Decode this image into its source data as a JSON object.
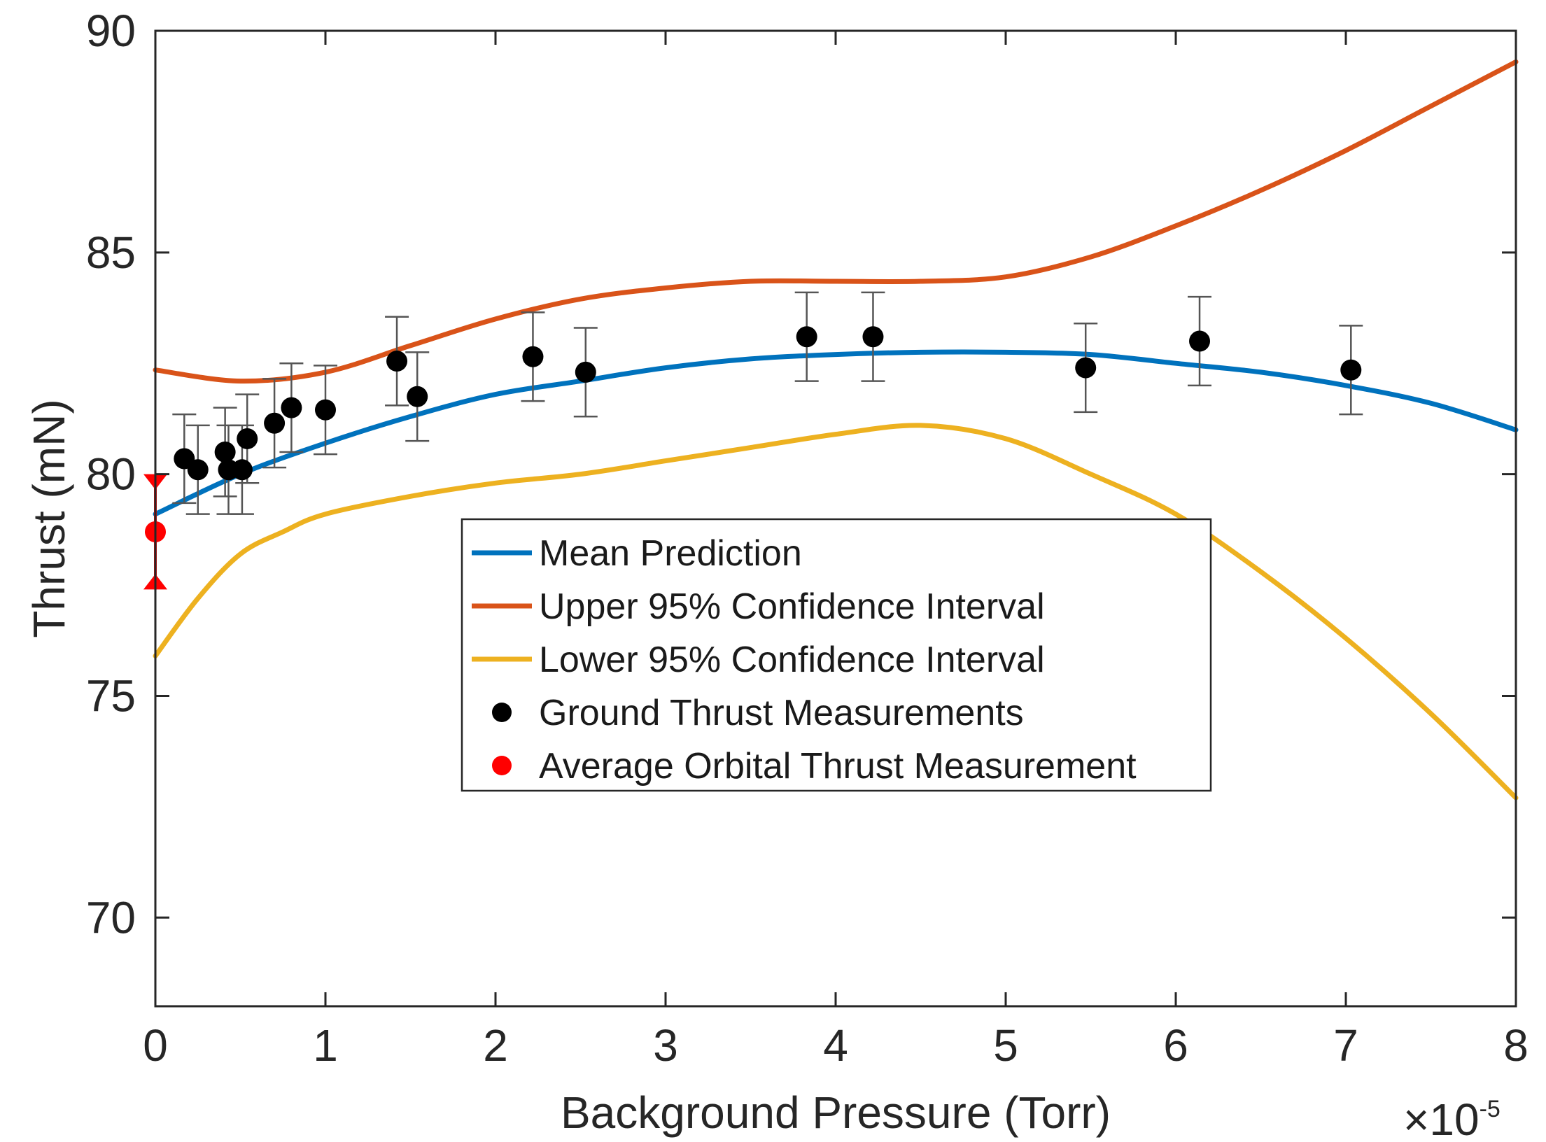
{
  "chart_data": {
    "type": "line",
    "title": "",
    "xlabel": "Background Pressure (Torr)",
    "ylabel": "Thrust (mN)",
    "x_exponent_label": "×10",
    "x_exponent_power": "-5",
    "xlim": [
      0,
      8
    ],
    "ylim": [
      68,
      90
    ],
    "xticks": [
      0,
      1,
      2,
      3,
      4,
      5,
      6,
      7,
      8
    ],
    "xtick_labels": [
      "0",
      "1",
      "2",
      "3",
      "4",
      "5",
      "6",
      "7",
      "8"
    ],
    "yticks": [
      70,
      75,
      80,
      85,
      90
    ],
    "ytick_labels": [
      "70",
      "75",
      "80",
      "85",
      "90"
    ],
    "grid": false,
    "legend_position": "center",
    "series": [
      {
        "name": "Mean Prediction",
        "kind": "line",
        "color": "#0072BD",
        "x": [
          0,
          0.5,
          1,
          1.5,
          2,
          2.5,
          3,
          3.5,
          4,
          4.5,
          5,
          5.5,
          6,
          6.5,
          7,
          7.5,
          8
        ],
        "y": [
          79.1,
          80.0,
          80.7,
          81.3,
          81.8,
          82.1,
          82.4,
          82.6,
          82.7,
          82.75,
          82.75,
          82.7,
          82.5,
          82.3,
          82.0,
          81.6,
          81.0
        ]
      },
      {
        "name": "Upper 95% Confidence Interval",
        "kind": "line",
        "color": "#D95319",
        "x": [
          0,
          0.5,
          1,
          1.5,
          2,
          2.5,
          3,
          3.5,
          4,
          4.5,
          5,
          5.5,
          6,
          6.5,
          7,
          7.5,
          8
        ],
        "y": [
          82.35,
          82.1,
          82.3,
          82.9,
          83.5,
          83.95,
          84.2,
          84.35,
          84.35,
          84.35,
          84.45,
          84.9,
          85.6,
          86.4,
          87.3,
          88.3,
          89.3
        ]
      },
      {
        "name": "Lower 95% Confidence Interval",
        "kind": "line",
        "color": "#EDB120",
        "x": [
          0,
          0.25,
          0.5,
          0.75,
          1,
          1.5,
          2,
          2.5,
          3,
          3.5,
          4,
          4.5,
          5,
          5.5,
          6,
          6.5,
          7,
          7.5,
          8
        ],
        "y": [
          75.9,
          77.2,
          78.2,
          78.7,
          79.1,
          79.5,
          79.8,
          80.0,
          80.3,
          80.6,
          80.9,
          81.1,
          80.8,
          80.0,
          79.1,
          77.8,
          76.3,
          74.6,
          72.7
        ]
      },
      {
        "name": "Ground Thrust Measurements",
        "kind": "scatter-errorbar",
        "color": "#000000",
        "points": [
          {
            "x": 0.17,
            "y": 80.35,
            "err": 1.0
          },
          {
            "x": 0.25,
            "y": 80.1,
            "err": 1.0
          },
          {
            "x": 0.41,
            "y": 80.5,
            "err": 1.0
          },
          {
            "x": 0.43,
            "y": 80.1,
            "err": 1.0
          },
          {
            "x": 0.51,
            "y": 80.1,
            "err": 1.0
          },
          {
            "x": 0.54,
            "y": 80.8,
            "err": 1.0
          },
          {
            "x": 0.7,
            "y": 81.15,
            "err": 1.0
          },
          {
            "x": 0.8,
            "y": 81.5,
            "err": 1.0
          },
          {
            "x": 1.0,
            "y": 81.45,
            "err": 1.0
          },
          {
            "x": 1.42,
            "y": 82.55,
            "err": 1.0
          },
          {
            "x": 1.54,
            "y": 81.75,
            "err": 1.0
          },
          {
            "x": 2.22,
            "y": 82.65,
            "err": 1.0
          },
          {
            "x": 2.53,
            "y": 82.3,
            "err": 1.0
          },
          {
            "x": 3.83,
            "y": 83.1,
            "err": 1.0
          },
          {
            "x": 4.22,
            "y": 83.1,
            "err": 1.0
          },
          {
            "x": 5.47,
            "y": 82.4,
            "err": 1.0
          },
          {
            "x": 6.14,
            "y": 83.0,
            "err": 1.0
          },
          {
            "x": 7.03,
            "y": 82.35,
            "err": 1.0
          }
        ]
      },
      {
        "name": "Average Orbital Thrust Measurement",
        "kind": "scatter-errorbar",
        "color": "#FF0000",
        "points": [
          {
            "x": 0.0,
            "y": 78.7,
            "err_low": 1.3,
            "err_high": 1.3
          }
        ]
      }
    ]
  }
}
